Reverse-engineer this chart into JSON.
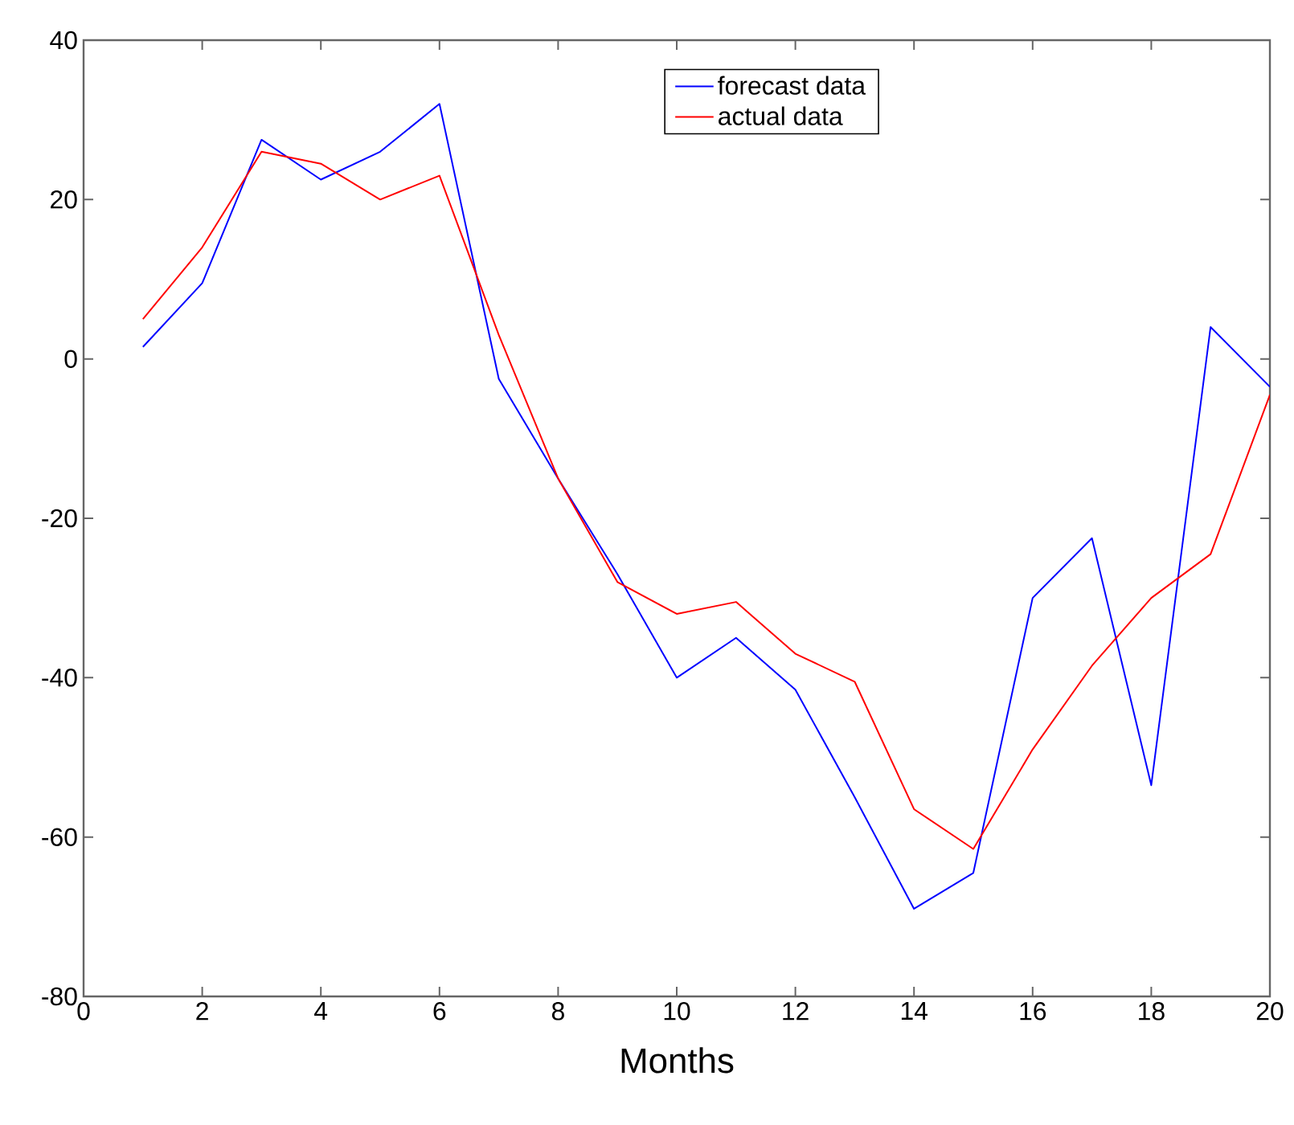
{
  "chart_data": {
    "type": "line",
    "xlabel": "Months",
    "x": [
      1,
      2,
      3,
      4,
      5,
      6,
      7,
      8,
      9,
      10,
      11,
      12,
      13,
      14,
      15,
      16,
      17,
      18,
      19,
      20
    ],
    "series": [
      {
        "name": "forecast data",
        "color": "#0000ff",
        "values": [
          1.5,
          9.5,
          27.5,
          22.5,
          26,
          32,
          -2.5,
          -15,
          -27,
          -40,
          -35,
          -41.5,
          -55,
          -69,
          -64.5,
          -30,
          -22.5,
          -53.5,
          4,
          -3.5
        ]
      },
      {
        "name": "actual data",
        "color": "#ff0000",
        "values": [
          5,
          14,
          26,
          24.5,
          20,
          23,
          3,
          -15,
          -28,
          -32,
          -30.5,
          -37,
          -40.5,
          -56.5,
          -61.5,
          -49,
          -38.5,
          -30,
          -24.5,
          -4.5
        ]
      }
    ],
    "xlim": [
      0,
      20
    ],
    "ylim": [
      -80,
      40
    ],
    "xticks": [
      0,
      2,
      4,
      6,
      8,
      10,
      12,
      14,
      16,
      18,
      20
    ],
    "yticks": [
      -80,
      -60,
      -40,
      -20,
      0,
      20,
      40
    ],
    "grid": false,
    "legend": "top",
    "marker": "none",
    "line_style": "solid"
  }
}
